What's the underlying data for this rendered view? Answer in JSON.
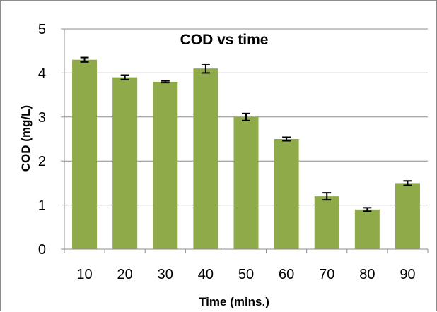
{
  "chart_data": {
    "type": "bar",
    "title": "COD vs time",
    "xlabel": "Time (mins.)",
    "ylabel": "COD (mg/L)",
    "categories": [
      "10",
      "20",
      "30",
      "40",
      "50",
      "60",
      "70",
      "80",
      "90"
    ],
    "values": [
      4.3,
      3.9,
      3.8,
      4.1,
      3.0,
      2.5,
      1.2,
      0.9,
      1.5
    ],
    "error": [
      0.05,
      0.05,
      0.02,
      0.1,
      0.08,
      0.04,
      0.08,
      0.04,
      0.05
    ],
    "ylim": [
      0,
      5
    ],
    "yticks": [
      "0",
      "1",
      "2",
      "3",
      "4",
      "5"
    ],
    "grid": true,
    "legend": "none",
    "bar_color": "#8faa49",
    "error_bar_color": "#000000"
  }
}
